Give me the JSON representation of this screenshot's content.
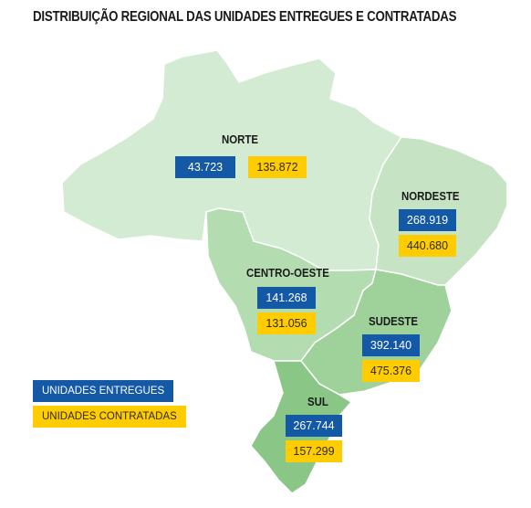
{
  "title": "DISTRIBUIÇÃO REGIONAL DAS UNIDADES ENTREGUES E CONTRATADAS",
  "colors": {
    "delivered": "#1459a6",
    "contracted": "#ffcc00",
    "region_norte": "#d3ebd2",
    "region_nordeste": "#c6e4c4",
    "region_centro_oeste": "#b4dcb1",
    "region_sudeste": "#9fd19b",
    "region_sul": "#8ac786"
  },
  "regions": {
    "norte": {
      "name": "NORTE",
      "delivered": "43.723",
      "contracted": "135.872"
    },
    "nordeste": {
      "name": "NORDESTE",
      "delivered": "268.919",
      "contracted": "440.680"
    },
    "centro_oeste": {
      "name": "CENTRO-OESTE",
      "delivered": "141.268",
      "contracted": "131.056"
    },
    "sudeste": {
      "name": "SUDESTE",
      "delivered": "392.140",
      "contracted": "475.376"
    },
    "sul": {
      "name": "SUL",
      "delivered": "267.744",
      "contracted": "157.299"
    }
  },
  "legend": {
    "delivered": "UNIDADES ENTREGUES",
    "contracted": "UNIDADES CONTRATADAS"
  }
}
